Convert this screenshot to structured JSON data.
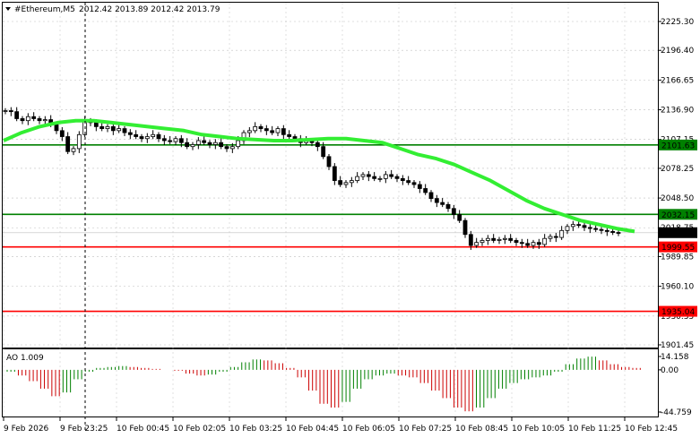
{
  "header": {
    "symbol_timeframe": "#Ethereum,M5",
    "ohlc": "2012.42 2013.89 2012.42 2013.79"
  },
  "indicator": {
    "label": "AO 1.009"
  },
  "price_axis": {
    "ticks": [
      "2225.30",
      "2196.40",
      "2166.65",
      "2136.90",
      "2107.15",
      "2078.25",
      "2048.50",
      "2018.75",
      "1989.85",
      "1960.10",
      "1930.35",
      "1901.45"
    ],
    "min": 1901.45,
    "max": 2225.3
  },
  "ao_axis": {
    "ticks": [
      "14.158",
      "0.00",
      "-44.759"
    ],
    "max": 14.158,
    "min": -44.759
  },
  "time_axis": {
    "ticks": [
      "9 Feb 2026",
      "9 Feb 23:25",
      "10 Feb 00:45",
      "10 Feb 02:05",
      "10 Feb 03:25",
      "10 Feb 04:45",
      "10 Feb 06:05",
      "10 Feb 07:25",
      "10 Feb 08:45",
      "10 Feb 10:05",
      "10 Feb 11:25",
      "10 Feb 12:45"
    ]
  },
  "levels": [
    {
      "label": "2101.63",
      "value": 2101.63,
      "color": "#008000",
      "kind": "green-line"
    },
    {
      "label": "2032.15",
      "value": 2032.15,
      "color": "#008000",
      "kind": "green-line"
    },
    {
      "label": "2013.79",
      "value": 2013.79,
      "color": "#000000",
      "kind": "current-price"
    },
    {
      "label": "1999.55",
      "value": 1999.55,
      "color": "#ff0000",
      "kind": "red-line"
    },
    {
      "label": "1935.04",
      "value": 1935.04,
      "color": "#ff0000",
      "kind": "red-line"
    }
  ],
  "colors": {
    "ma": "#33ee33",
    "ao_up": "#008000",
    "ao_down": "#cc0000",
    "grid": "#c0c0c0",
    "candle": "#000000"
  },
  "chart_data": {
    "type": "line",
    "title": "#Ethereum,M5",
    "series": [
      {
        "name": "",
        "role": "price-close",
        "values": [
          2136,
          2135,
          2128,
          2126,
          2130,
          2128,
          2126,
          2127,
          2122,
          2116,
          2110,
          2095,
          2098,
          2112,
          2126,
          2124,
          2120,
          2118,
          2120,
          2116,
          2118,
          2114,
          2112,
          2110,
          2108,
          2110,
          2112,
          2108,
          2106,
          2105,
          2108,
          2104,
          2100,
          2102,
          2106,
          2104,
          2102,
          2104,
          2100,
          2098,
          2100,
          2106,
          2114,
          2116,
          2120,
          2118,
          2116,
          2114,
          2118,
          2112,
          2110,
          2108,
          2104,
          2106,
          2104,
          2100,
          2090,
          2080,
          2066,
          2062,
          2064,
          2066,
          2070,
          2072,
          2070,
          2068,
          2068,
          2072,
          2070,
          2068,
          2066,
          2064,
          2062,
          2058,
          2054,
          2048,
          2044,
          2042,
          2038,
          2032,
          2026,
          2012,
          2001,
          2004,
          2006,
          2008,
          2006,
          2007,
          2008,
          2006,
          2004,
          2003,
          2001,
          2004,
          2002,
          2008,
          2010,
          2009,
          2016,
          2020,
          2022,
          2021,
          2019,
          2018,
          2017,
          2016,
          2015,
          2014,
          2013.79
        ]
      },
      {
        "name": "",
        "role": "moving-average",
        "values": [
          2106,
          2114,
          2120,
          2124,
          2126,
          2126,
          2124,
          2122,
          2120,
          2118,
          2116,
          2112,
          2110,
          2108,
          2107,
          2106,
          2106,
          2107,
          2108,
          2108,
          2106,
          2104,
          2098,
          2092,
          2088,
          2082,
          2074,
          2066,
          2056,
          2046,
          2038,
          2032,
          2026,
          2022,
          2018,
          2015
        ]
      }
    ],
    "ao_series": [
      -2,
      -6,
      -12,
      -20,
      -28,
      -24,
      -10,
      -2,
      2,
      3,
      4,
      3,
      2,
      1,
      0,
      -1,
      -4,
      -6,
      -5,
      -2,
      3,
      8,
      11,
      10,
      7,
      2,
      -8,
      -22,
      -36,
      -40,
      -34,
      -20,
      -10,
      -6,
      -4,
      -6,
      -8,
      -14,
      -22,
      -30,
      -40,
      -44,
      -40,
      -30,
      -20,
      -14,
      -10,
      -8,
      -6,
      -2,
      6,
      12,
      14,
      10,
      6,
      3,
      2
    ]
  }
}
